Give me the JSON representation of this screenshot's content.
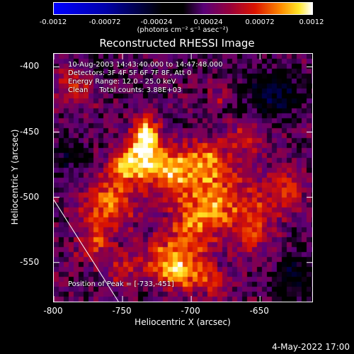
{
  "colorbar": {
    "ticks": [
      "-0.0012",
      "-0.00072",
      "-0.00024",
      "0.00024",
      "0.00072",
      "0.0012"
    ],
    "units": "(photons cm⁻² s⁻¹ asec⁻²)",
    "range": [
      -0.0012,
      0.0012
    ],
    "colormap": "blue-black-red-yellow-white"
  },
  "info": {
    "time": "10-Aug-2003 14:43:40.000 to 14:47:48.000",
    "detectors": "Detectors: 3F 4F 5F 6F 7F 8F, Att 0",
    "energy": "Energy Range: 12.0 - 25.0 keV",
    "clean": "Clean     Total counts: 3.88E+03"
  },
  "peak_note": "Position of Peak = [-733,-451]",
  "footer_date": "4-May-2022 17:00",
  "chart_data": {
    "type": "heatmap",
    "title": "Reconstructed RHESSI Image",
    "xlabel": "Heliocentric X (arcsec)",
    "ylabel": "Heliocentric Y (arcsec)",
    "xlim": [
      -800,
      -612
    ],
    "ylim": [
      -580,
      -390
    ],
    "xticks": [
      "-800",
      "-750",
      "-700",
      "-650"
    ],
    "yticks": [
      "-400",
      "-450",
      "-500",
      "-550"
    ],
    "peak": {
      "x": -733,
      "y": -451
    },
    "limb_line": [
      [
        -800,
        -502
      ],
      [
        -753,
        -580
      ]
    ],
    "emission_blobs": [
      {
        "x": -733,
        "y": -451,
        "sx": 6,
        "sy": 8,
        "amp": 1.0
      },
      {
        "x": -735,
        "y": -468,
        "sx": 10,
        "sy": 10,
        "amp": 0.75
      },
      {
        "x": -712,
        "y": -480,
        "sx": 14,
        "sy": 12,
        "amp": 0.7
      },
      {
        "x": -760,
        "y": -505,
        "sx": 14,
        "sy": 12,
        "amp": 0.65
      },
      {
        "x": -700,
        "y": -520,
        "sx": 12,
        "sy": 20,
        "amp": 0.6
      },
      {
        "x": -748,
        "y": -478,
        "sx": 10,
        "sy": 10,
        "amp": 0.55
      },
      {
        "x": -718,
        "y": -548,
        "sx": 14,
        "sy": 12,
        "amp": 0.55
      },
      {
        "x": -680,
        "y": -500,
        "sx": 10,
        "sy": 18,
        "amp": 0.55
      },
      {
        "x": -655,
        "y": -515,
        "sx": 12,
        "sy": 22,
        "amp": 0.5
      },
      {
        "x": -630,
        "y": -495,
        "sx": 8,
        "sy": 10,
        "amp": 0.55
      },
      {
        "x": -660,
        "y": -455,
        "sx": 10,
        "sy": 8,
        "amp": 0.45
      },
      {
        "x": -690,
        "y": -470,
        "sx": 10,
        "sy": 10,
        "amp": 0.5
      },
      {
        "x": -785,
        "y": -415,
        "sx": 10,
        "sy": 10,
        "amp": 0.45
      },
      {
        "x": -770,
        "y": -535,
        "sx": 10,
        "sy": 10,
        "amp": 0.45
      },
      {
        "x": -705,
        "y": -560,
        "sx": 12,
        "sy": 8,
        "amp": 0.5
      },
      {
        "x": -750,
        "y": -555,
        "sx": 8,
        "sy": 8,
        "amp": 0.35
      },
      {
        "x": -682,
        "y": -565,
        "sx": 8,
        "sy": 8,
        "amp": 0.35
      }
    ],
    "negative_blobs": [
      {
        "x": -640,
        "y": -420,
        "sx": 15,
        "sy": 12,
        "amp": 0.25
      },
      {
        "x": -625,
        "y": -560,
        "sx": 12,
        "sy": 12,
        "amp": 0.18
      },
      {
        "x": -790,
        "y": -470,
        "sx": 10,
        "sy": 12,
        "amp": 0.15
      },
      {
        "x": -770,
        "y": -400,
        "sx": 10,
        "sy": 8,
        "amp": 0.12
      }
    ],
    "ring": {
      "x": -680,
      "y": -420,
      "r": 6,
      "amp": 0.5
    }
  }
}
